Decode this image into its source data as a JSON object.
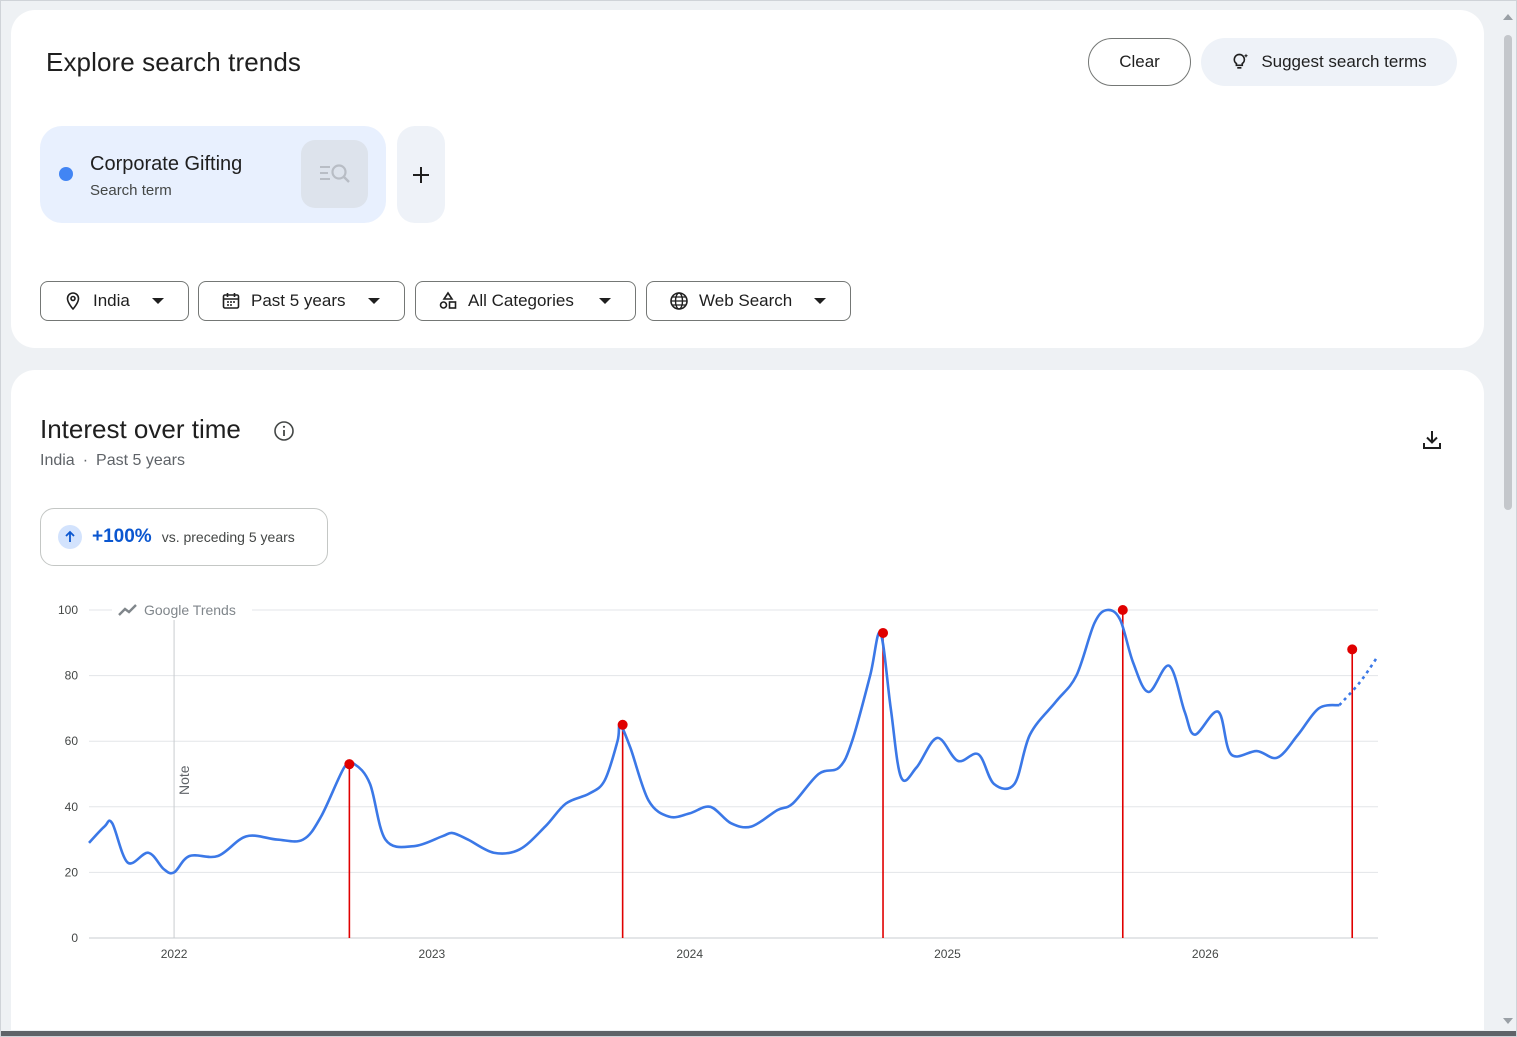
{
  "header": {
    "title": "Explore search trends",
    "clear_label": "Clear",
    "suggest_label": "Suggest search terms"
  },
  "term": {
    "name": "Corporate Gifting",
    "type": "Search term",
    "color": "#4285f4",
    "add_label": "+"
  },
  "filters": {
    "region": "India",
    "time": "Past 5 years",
    "category": "All Categories",
    "property": "Web Search"
  },
  "chart_card": {
    "title": "Interest over time",
    "region": "India",
    "separator": "·",
    "time": "Past 5 years",
    "change_value": "+100%",
    "change_label": "vs. preceding 5 years",
    "watermark": "Google Trends",
    "note_label": "Note"
  },
  "chart_data": {
    "type": "line",
    "ylim": [
      0,
      100
    ],
    "yticks": [
      0,
      20,
      40,
      60,
      80,
      100
    ],
    "xlim": [
      2021.67,
      2026.67
    ],
    "xticks": [
      2022,
      2023,
      2024,
      2025,
      2026
    ],
    "grid": true,
    "series": [
      {
        "color": "#3b78e7",
        "points": [
          [
            2021.67,
            29
          ],
          [
            2021.73,
            34
          ],
          [
            2021.76,
            35
          ],
          [
            2021.82,
            23
          ],
          [
            2021.9,
            26
          ],
          [
            2021.96,
            21
          ],
          [
            2022.0,
            20
          ],
          [
            2022.06,
            25
          ],
          [
            2022.17,
            25
          ],
          [
            2022.28,
            31
          ],
          [
            2022.4,
            30
          ],
          [
            2022.5,
            30
          ],
          [
            2022.57,
            37
          ],
          [
            2022.66,
            52
          ],
          [
            2022.7,
            53
          ],
          [
            2022.76,
            47
          ],
          [
            2022.82,
            30
          ],
          [
            2022.93,
            28
          ],
          [
            2023.04,
            31
          ],
          [
            2023.08,
            32
          ],
          [
            2023.14,
            30
          ],
          [
            2023.24,
            26
          ],
          [
            2023.34,
            27
          ],
          [
            2023.44,
            34
          ],
          [
            2023.52,
            41
          ],
          [
            2023.61,
            44
          ],
          [
            2023.67,
            48
          ],
          [
            2023.72,
            60
          ],
          [
            2023.73,
            65
          ],
          [
            2023.77,
            58
          ],
          [
            2023.84,
            42
          ],
          [
            2023.92,
            37
          ],
          [
            2024.0,
            38
          ],
          [
            2024.08,
            40
          ],
          [
            2024.16,
            35
          ],
          [
            2024.24,
            34
          ],
          [
            2024.34,
            39
          ],
          [
            2024.4,
            41
          ],
          [
            2024.5,
            50
          ],
          [
            2024.58,
            52
          ],
          [
            2024.63,
            60
          ],
          [
            2024.7,
            80
          ],
          [
            2024.74,
            93
          ],
          [
            2024.78,
            70
          ],
          [
            2024.82,
            49
          ],
          [
            2024.88,
            52
          ],
          [
            2024.96,
            61
          ],
          [
            2025.04,
            54
          ],
          [
            2025.12,
            56
          ],
          [
            2025.18,
            47
          ],
          [
            2025.26,
            47
          ],
          [
            2025.32,
            62
          ],
          [
            2025.42,
            72
          ],
          [
            2025.5,
            80
          ],
          [
            2025.57,
            96
          ],
          [
            2025.62,
            100
          ],
          [
            2025.67,
            97
          ],
          [
            2025.72,
            84
          ],
          [
            2025.78,
            75
          ],
          [
            2025.86,
            83
          ],
          [
            2025.92,
            69
          ],
          [
            2025.96,
            62
          ],
          [
            2026.05,
            69
          ],
          [
            2026.1,
            56
          ],
          [
            2026.2,
            57
          ],
          [
            2026.28,
            55
          ],
          [
            2026.36,
            62
          ],
          [
            2026.44,
            70
          ],
          [
            2026.52,
            71
          ]
        ],
        "forecast": [
          [
            2026.52,
            71
          ],
          [
            2026.6,
            78
          ],
          [
            2026.67,
            86
          ]
        ]
      }
    ],
    "annotations": [
      {
        "x": 2022.68,
        "y": 53,
        "color": "#e00000"
      },
      {
        "x": 2023.74,
        "y": 65,
        "color": "#e00000"
      },
      {
        "x": 2024.75,
        "y": 93,
        "color": "#e00000"
      },
      {
        "x": 2025.68,
        "y": 100,
        "color": "#e00000"
      },
      {
        "x": 2026.57,
        "y": 88,
        "color": "#e00000"
      }
    ],
    "note_line_x": 2022.0
  }
}
